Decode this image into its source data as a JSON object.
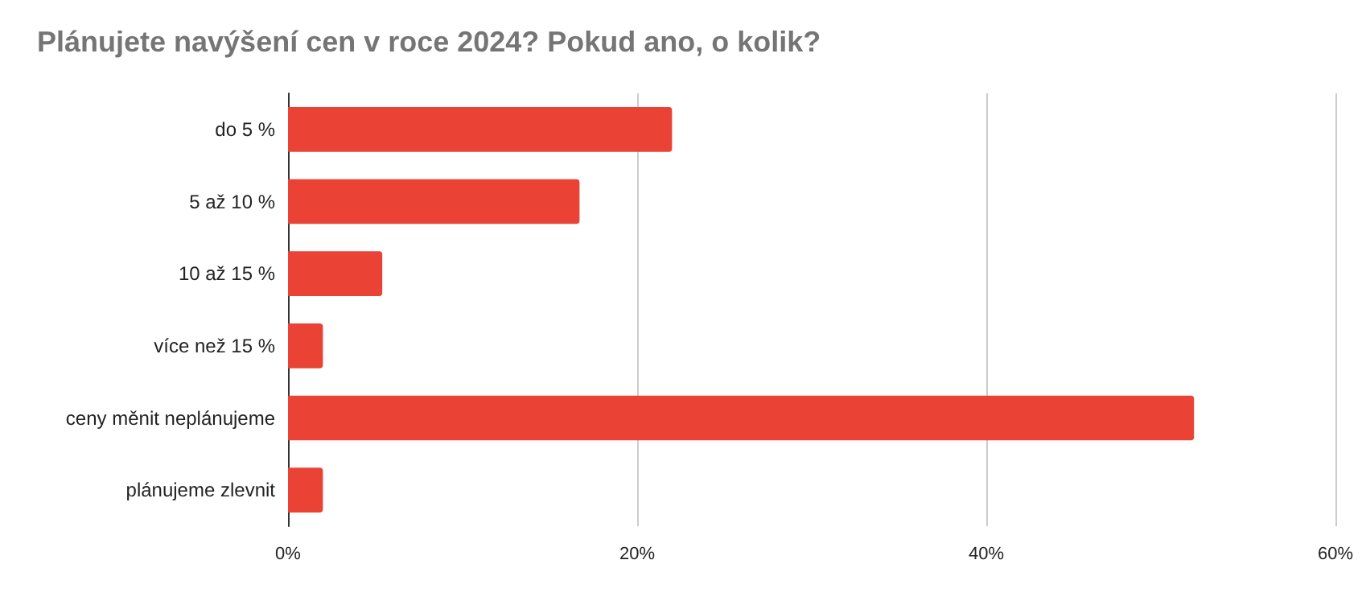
{
  "chart_data": {
    "type": "bar",
    "orientation": "horizontal",
    "title": "Plánujete navýšení cen v roce 2024? Pokud ano, o kolik?",
    "categories": [
      "do 5 %",
      "5 až 10 %",
      "10 až 15 %",
      "více než 15 %",
      "ceny měnit neplánujeme",
      "plánujeme zlevnit"
    ],
    "values": [
      22.0,
      16.7,
      5.4,
      2.0,
      51.9,
      2.0
    ],
    "color": "#ea4335",
    "xlim": [
      0,
      60
    ],
    "xticks": [
      {
        "value": 0,
        "label": "0%"
      },
      {
        "value": 20,
        "label": "20%"
      },
      {
        "value": 40,
        "label": "40%"
      },
      {
        "value": 60,
        "label": "60%"
      }
    ],
    "grid": "x"
  }
}
